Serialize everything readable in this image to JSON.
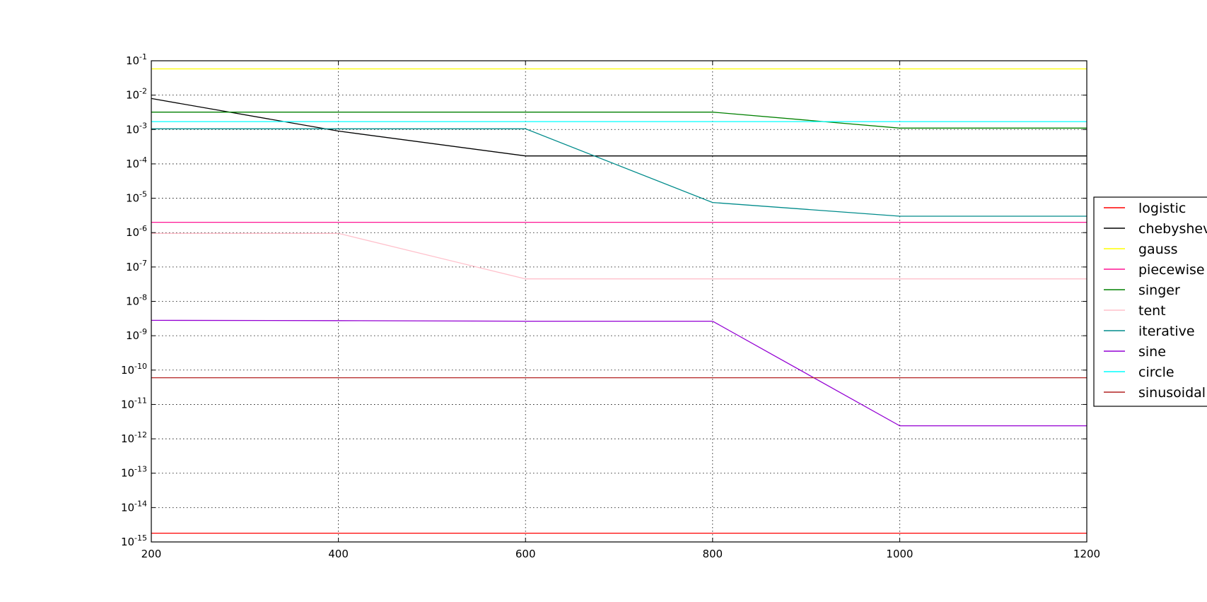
{
  "chart_data": {
    "type": "line",
    "x_scale": "linear",
    "y_scale": "log",
    "xlim": [
      200,
      1200
    ],
    "ylim_exponents": [
      -15,
      -1
    ],
    "x_ticks": [
      200,
      400,
      600,
      800,
      1000,
      1200
    ],
    "y_ticks": [
      -15,
      -14,
      -13,
      -12,
      -11,
      -10,
      -9,
      -8,
      -7,
      -6,
      -5,
      -4,
      -3,
      -2,
      -1
    ],
    "grid": true,
    "legend_position": "right",
    "x": [
      200,
      400,
      600,
      800,
      1000,
      1200
    ],
    "series": [
      {
        "name": "logistic",
        "color": "#ff0000",
        "values": [
          1.8e-15,
          1.8e-15,
          1.8e-15,
          1.8e-15,
          1.8e-15,
          1.8e-15
        ]
      },
      {
        "name": "chebyshev",
        "color": "#000000",
        "values": [
          0.008,
          0.0009,
          0.00017,
          0.00017,
          0.00017,
          0.00017
        ]
      },
      {
        "name": "gauss",
        "color": "#ffff00",
        "values": [
          0.058,
          0.058,
          0.058,
          0.058,
          0.058,
          0.058
        ]
      },
      {
        "name": "piecewise",
        "color": "#ff1493",
        "values": [
          2e-06,
          2e-06,
          2e-06,
          2e-06,
          2e-06,
          2e-06
        ]
      },
      {
        "name": "singer",
        "color": "#008000",
        "values": [
          0.0032,
          0.0032,
          0.0032,
          0.0032,
          0.0011,
          0.0011
        ]
      },
      {
        "name": "tent",
        "color": "#ffc0cb",
        "values": [
          9.5e-07,
          9.5e-07,
          4.5e-08,
          4.5e-08,
          4.5e-08,
          4.5e-08
        ]
      },
      {
        "name": "iterative",
        "color": "#008b8b",
        "values": [
          0.00105,
          0.00105,
          0.00105,
          7.5e-06,
          3e-06,
          3e-06
        ]
      },
      {
        "name": "sine",
        "color": "#9400d3",
        "values": [
          2.8e-09,
          2.75e-09,
          2.65e-09,
          2.65e-09,
          2.4e-12,
          2.4e-12
        ]
      },
      {
        "name": "circle",
        "color": "#00ffff",
        "values": [
          0.0017,
          0.0017,
          0.0017,
          0.0017,
          0.0017,
          0.0017
        ]
      },
      {
        "name": "sinusoidal",
        "color": "#b22222",
        "values": [
          6e-11,
          6e-11,
          6e-11,
          6e-11,
          6e-11,
          6e-11
        ]
      }
    ]
  }
}
